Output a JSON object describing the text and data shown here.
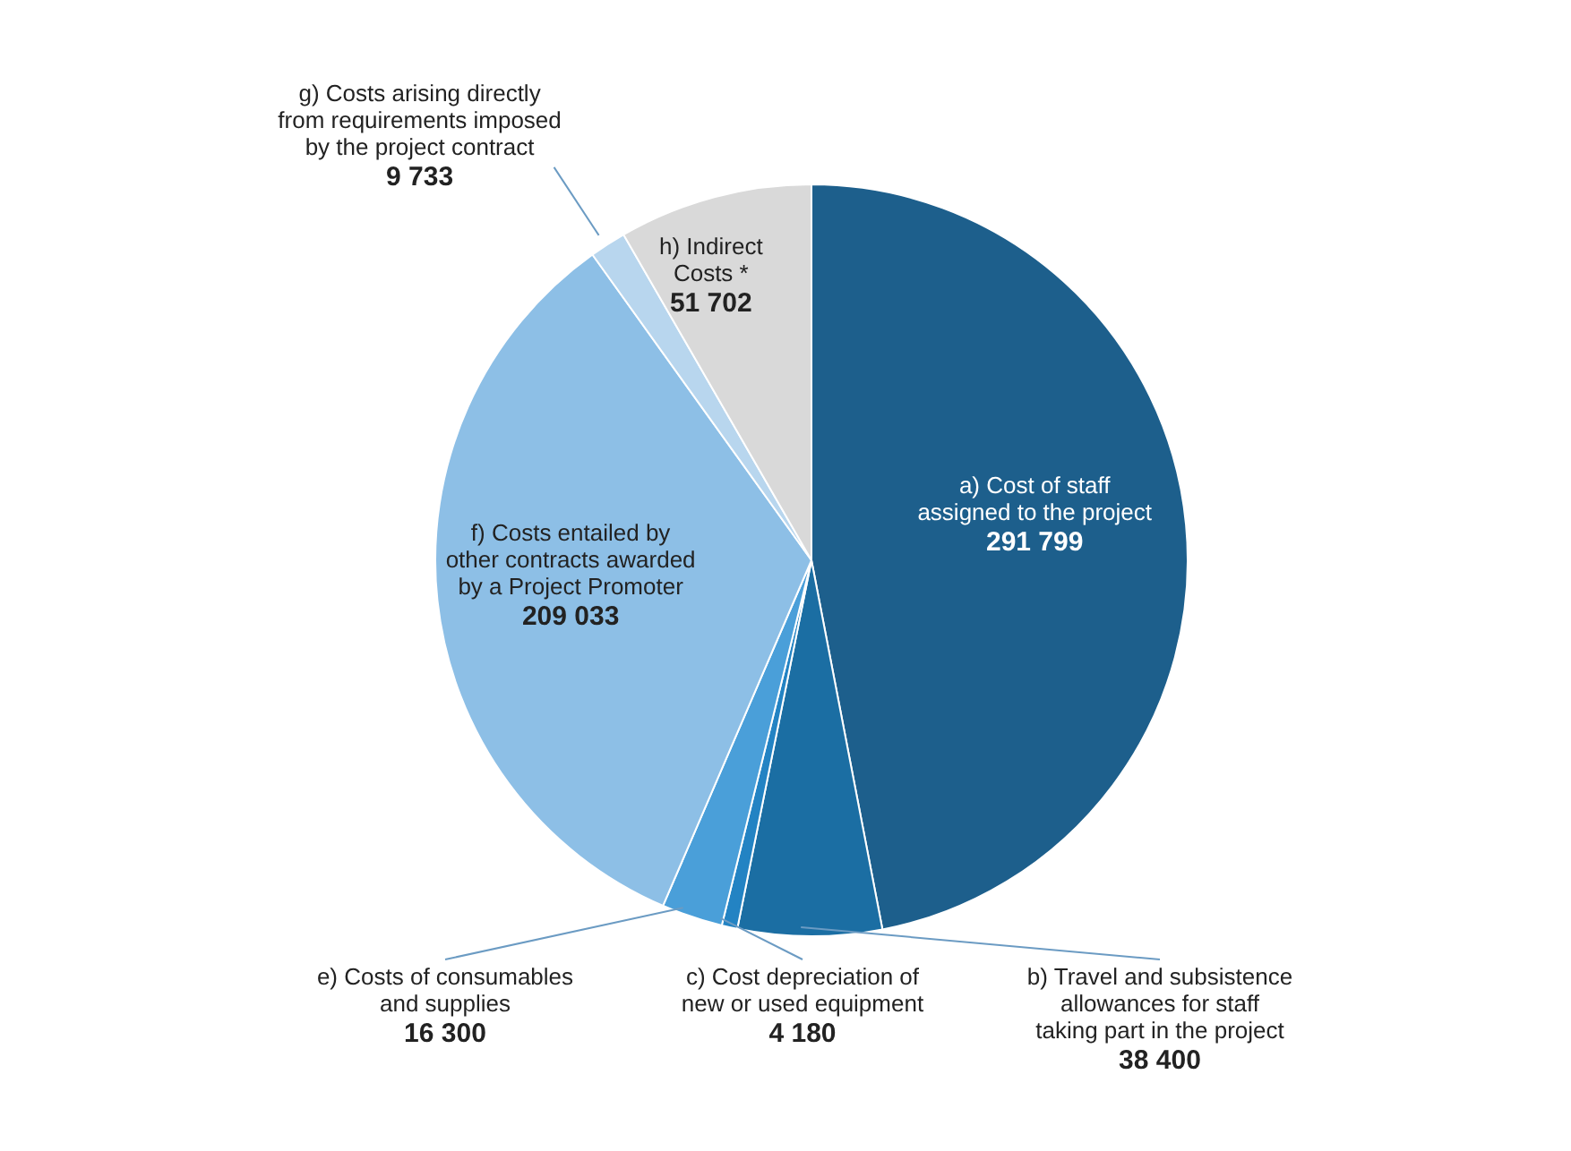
{
  "chart_data": {
    "type": "pie",
    "categories": [
      "a) Cost of staff assigned to the project",
      "b) Travel and subsistence allowances for staff taking part in the project",
      "c) Cost depreciation of new or used equipment",
      "e) Costs of consumables and supplies",
      "f) Costs entailed by other contracts awarded by a Project Promoter",
      "g) Costs arising directly from requirements imposed by the project contract",
      "h) Indirect Costs *"
    ],
    "values": [
      291799,
      38400,
      4180,
      16300,
      209033,
      9733,
      51702
    ],
    "value_labels": [
      "291 799",
      "38 400",
      "4 180",
      "16 300",
      "209 033",
      "9 733",
      "51 702"
    ],
    "colors": [
      "#1d5f8c",
      "#1b6ea3",
      "#2383c3",
      "#4a9fd9",
      "#8dbfe6",
      "#b8d6ee",
      "#d9d9d9"
    ]
  }
}
